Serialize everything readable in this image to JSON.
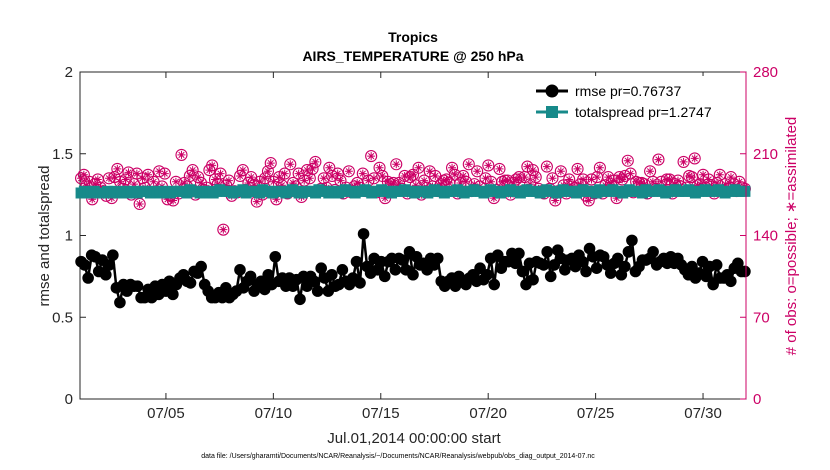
{
  "chart_data": {
    "type": "line",
    "title": "Tropics",
    "subtitle": "AIRS_TEMPERATURE @ 250 hPa",
    "xlabel": "Jul.01,2014 00:00:00 start",
    "ylabel_left": "rmse and totalspread",
    "ylabel_right": "# of obs: o=possible; ∗=assimilated",
    "footnote": "data file: /Users/gharamti/Documents/NCAR/Reanalysis/~/Documents/NCAR/Reanalysis/webpub/obs_diag_output_2014-07.nc",
    "x_range_days": [
      1.0,
      32.0
    ],
    "x_ticks": [
      {
        "day": 5,
        "label": "07/05"
      },
      {
        "day": 10,
        "label": "07/10"
      },
      {
        "day": 15,
        "label": "07/15"
      },
      {
        "day": 20,
        "label": "07/20"
      },
      {
        "day": 25,
        "label": "07/25"
      },
      {
        "day": 30,
        "label": "07/30"
      }
    ],
    "ylim_left": [
      0,
      2
    ],
    "y_ticks_left": [
      "0",
      "0.5",
      "1",
      "1.5",
      "2"
    ],
    "ylim_right": [
      0,
      280
    ],
    "y_ticks_right": [
      "0",
      "70",
      "140",
      "210",
      "280"
    ],
    "legend": {
      "placement": "top-right",
      "entries": [
        "rmse pr=0.76737",
        "totalspread pr=1.2747"
      ]
    },
    "series": [
      {
        "name": "rmse pr=0.76737",
        "axis": "left",
        "color": "#000000",
        "values": [
          0.84,
          0.82,
          0.74,
          0.88,
          0.87,
          0.78,
          0.85,
          0.76,
          0.82,
          0.88,
          0.68,
          0.59,
          0.7,
          0.66,
          0.7,
          0.69,
          0.69,
          0.62,
          0.62,
          0.67,
          0.62,
          0.69,
          0.64,
          0.7,
          0.66,
          0.72,
          0.64,
          0.7,
          0.74,
          0.76,
          0.72,
          0.71,
          0.78,
          0.77,
          0.81,
          0.7,
          0.66,
          0.62,
          0.62,
          0.65,
          0.62,
          0.68,
          0.62,
          0.64,
          0.66,
          0.79,
          0.68,
          0.72,
          0.75,
          0.66,
          0.7,
          0.72,
          0.67,
          0.76,
          0.7,
          0.87,
          0.72,
          0.74,
          0.69,
          0.74,
          0.69,
          0.73,
          0.61,
          0.75,
          0.69,
          0.75,
          0.72,
          0.66,
          0.8,
          0.74,
          0.66,
          0.76,
          0.69,
          0.7,
          0.79,
          0.72,
          0.7,
          0.74,
          0.84,
          0.71,
          1.01,
          0.81,
          0.77,
          0.86,
          0.79,
          0.84,
          0.75,
          0.84,
          0.86,
          0.79,
          0.86,
          0.85,
          0.79,
          0.9,
          0.76,
          0.87,
          0.82,
          0.83,
          0.79,
          0.86,
          0.82,
          0.86,
          0.72,
          0.69,
          0.72,
          0.74,
          0.69,
          0.75,
          0.72,
          0.7,
          0.74,
          0.76,
          0.72,
          0.8,
          0.73,
          0.76,
          0.86,
          0.7,
          0.88,
          0.8,
          0.84,
          0.84,
          0.89,
          0.83,
          0.89,
          0.78,
          0.7,
          0.83,
          0.73,
          0.84,
          0.83,
          0.82,
          0.9,
          0.75,
          0.82,
          0.91,
          0.86,
          0.79,
          0.85,
          0.86,
          0.81,
          0.88,
          0.84,
          0.78,
          0.92,
          0.87,
          0.8,
          0.88,
          0.87,
          0.82,
          0.77,
          0.83,
          0.86,
          0.76,
          0.81,
          0.9,
          0.97,
          0.78,
          0.81,
          0.85,
          0.85,
          0.86,
          0.9,
          0.82,
          0.84,
          0.86,
          0.83,
          0.87,
          0.83,
          0.86,
          0.82,
          0.79,
          0.76,
          0.81,
          0.74,
          0.77,
          0.84,
          0.75,
          0.81,
          0.7,
          0.82,
          0.74,
          0.74,
          0.76,
          0.72,
          0.8,
          0.83,
          0.78,
          0.78
        ],
        "marker": "filled-circle"
      },
      {
        "name": "totalspread pr=1.2747",
        "axis": "left",
        "color": "#178a8a",
        "values": [
          1.26,
          1.27,
          1.26,
          1.27,
          1.27,
          1.26,
          1.26,
          1.26,
          1.27,
          1.26,
          1.27,
          1.26,
          1.26,
          1.27,
          1.27,
          1.26,
          1.27,
          1.26,
          1.27,
          1.27,
          1.27,
          1.26,
          1.27,
          1.26,
          1.27,
          1.27,
          1.26,
          1.26,
          1.27,
          1.27,
          1.27,
          1.27,
          1.26,
          1.28,
          1.27,
          1.27,
          1.26,
          1.27,
          1.27,
          1.26,
          1.26,
          1.27,
          1.28,
          1.27,
          1.27,
          1.27,
          1.26,
          1.27,
          1.27,
          1.28,
          1.26,
          1.27,
          1.27,
          1.27,
          1.26,
          1.28,
          1.27,
          1.27,
          1.26,
          1.27,
          1.27,
          1.27,
          1.26,
          1.27,
          1.28,
          1.27,
          1.26,
          1.26,
          1.27,
          1.27,
          1.27,
          1.26,
          1.28,
          1.27,
          1.27,
          1.26,
          1.27,
          1.27,
          1.26,
          1.27,
          1.28,
          1.27,
          1.27,
          1.26,
          1.27,
          1.27,
          1.28,
          1.27,
          1.26,
          1.27,
          1.27,
          1.28,
          1.27,
          1.27,
          1.26,
          1.27,
          1.27,
          1.27,
          1.28,
          1.27,
          1.27,
          1.26,
          1.27,
          1.27,
          1.27,
          1.26,
          1.27,
          1.28,
          1.27,
          1.27,
          1.26,
          1.27,
          1.27,
          1.27,
          1.28,
          1.27,
          1.26,
          1.27,
          1.27,
          1.28,
          1.27,
          1.27,
          1.26,
          1.27,
          1.28,
          1.27,
          1.27,
          1.26,
          1.27,
          1.27,
          1.28,
          1.27,
          1.27,
          1.26,
          1.27,
          1.28,
          1.27,
          1.27,
          1.27,
          1.26,
          1.27,
          1.28,
          1.27,
          1.27,
          1.26,
          1.27,
          1.28,
          1.27,
          1.27,
          1.27,
          1.26,
          1.27,
          1.28,
          1.27,
          1.27,
          1.27,
          1.26,
          1.28,
          1.27,
          1.27,
          1.27,
          1.28,
          1.27,
          1.27,
          1.26,
          1.27,
          1.28,
          1.27,
          1.27,
          1.27,
          1.26,
          1.28,
          1.27,
          1.27,
          1.27,
          1.28,
          1.27,
          1.26,
          1.27,
          1.27,
          1.28,
          1.27,
          1.27,
          1.27,
          1.28,
          1.27,
          1.26,
          1.27,
          1.27,
          1.28,
          1.27,
          1.27,
          1.27,
          1.28,
          1.27,
          1.26,
          1.27,
          1.27,
          1.28,
          1.27,
          1.27,
          1.27
        ],
        "marker": "filled-square"
      },
      {
        "name": "# of obs possible / assimilated",
        "axis": "right",
        "color": "#cc0066",
        "values": [
          189,
          192,
          183,
          186,
          171,
          184,
          188,
          181,
          178,
          174,
          189,
          172,
          190,
          197,
          186,
          180,
          188,
          194,
          175,
          184,
          193,
          167,
          189,
          181,
          192,
          177,
          186,
          178,
          195,
          182,
          193,
          171,
          174,
          170,
          186,
          176,
          209,
          185,
          182,
          191,
          196,
          175,
          190,
          185,
          179,
          181,
          196,
          200,
          188,
          184,
          193,
          145,
          183,
          187,
          174,
          178,
          177,
          191,
          196,
          179,
          185,
          190,
          183,
          169,
          186,
          175,
          189,
          195,
          202,
          186,
          171,
          190,
          183,
          193,
          176,
          201,
          185,
          182,
          193,
          173,
          187,
          196,
          189,
          197,
          203,
          178,
          180,
          189,
          181,
          198,
          191,
          179,
          193,
          187,
          176,
          181,
          195,
          177,
          182,
          185,
          181,
          193,
          178,
          187,
          208,
          189,
          177,
          198,
          191,
          172,
          186,
          184,
          185,
          201,
          185,
          180,
          191,
          176,
          190,
          192,
          183,
          198,
          175,
          187,
          181,
          195,
          182,
          191,
          178,
          184,
          187,
          188,
          185,
          198,
          192,
          176,
          185,
          191,
          186,
          201,
          178,
          184,
          195,
          182,
          177,
          189,
          200,
          186,
          172,
          179,
          197,
          186,
          187,
          187,
          175,
          185,
          188,
          190,
          178,
          190,
          199,
          184,
          196,
          190,
          180,
          178,
          176,
          199,
          180,
          189,
          170,
          178,
          195,
          183,
          176,
          188,
          182,
          181,
          197,
          184,
          188,
          174,
          170,
          188,
          176,
          190,
          198,
          176,
          183,
          190,
          184,
          187,
          172,
          190,
          188,
          191,
          204,
          193,
          177,
          186,
          185,
          185,
          184,
          176,
          195,
          186,
          180,
          205,
          186,
          178,
          188,
          188,
          176,
          184,
          187,
          182,
          203,
          181,
          191,
          190,
          206,
          183,
          184,
          192,
          181,
          188,
          182,
          176,
          185,
          192,
          178,
          184,
          180,
          190,
          184,
          178,
          186,
          181,
          180
        ],
        "marker": "circle-with-asterisk"
      }
    ]
  }
}
